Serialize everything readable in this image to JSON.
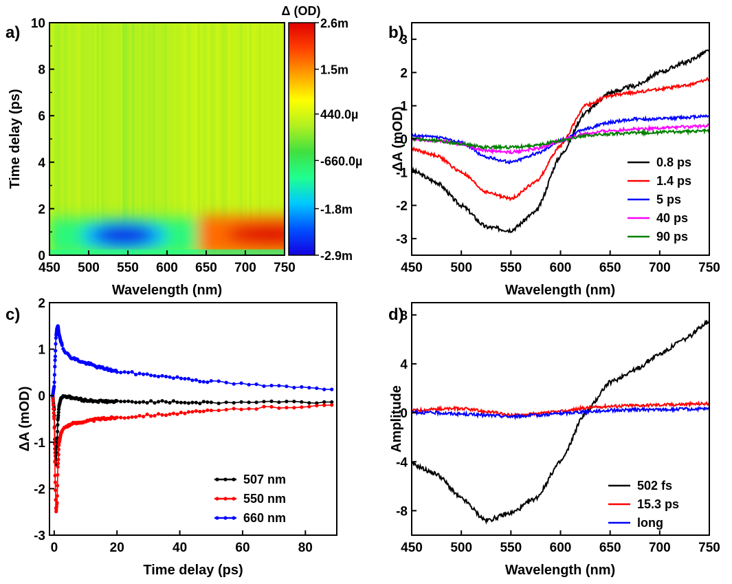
{
  "figure": {
    "panels": [
      {
        "letter": "a)"
      },
      {
        "letter": "b)"
      },
      {
        "letter": "c)"
      },
      {
        "letter": "d)"
      }
    ]
  },
  "chart_data": [
    {
      "id": "a",
      "type": "heatmap",
      "xlabel": "Wavelength (nm)",
      "ylabel": "Time delay (ps)",
      "xlim": [
        450,
        750
      ],
      "ylim": [
        0,
        10
      ],
      "xticks": [
        "450",
        "500",
        "550",
        "600",
        "650",
        "700",
        "750"
      ],
      "yticks": [
        "0",
        "2",
        "4",
        "6",
        "8",
        "10"
      ],
      "colorbar": {
        "title": "Δ (OD)",
        "range_mOD": [
          -2.9,
          2.6
        ],
        "ticks": [
          {
            "label": "2.6m",
            "value": 2.6
          },
          {
            "label": "1.5m",
            "value": 1.5
          },
          {
            "label": "440.0µ",
            "value": 0.44
          },
          {
            "label": "-660.0µ",
            "value": -0.66
          },
          {
            "label": "-1.8m",
            "value": -1.8
          },
          {
            "label": "-2.9m",
            "value": -2.9
          }
        ],
        "colormap": [
          "#1400e0",
          "#0050ff",
          "#00c8ff",
          "#20ff90",
          "#40e040",
          "#b0f020",
          "#ffff00",
          "#ffa000",
          "#ff4000",
          "#e00000"
        ]
      },
      "background_level_mOD": 0.2,
      "features": [
        {
          "kind": "bleach",
          "center_wavelength": 545,
          "center_delay": 0.85,
          "peak_mOD": -2.8
        },
        {
          "kind": "absorption",
          "from_wavelength": 640,
          "to_wavelength": 750,
          "center_delay": 0.9,
          "peak_mOD": 2.6
        }
      ]
    },
    {
      "id": "b",
      "type": "line",
      "xlabel": "Wavelength (nm)",
      "ylabel": "ΔA (mOD)",
      "xlim": [
        450,
        750
      ],
      "ylim": [
        -3.5,
        3.5
      ],
      "xticks": [
        "450",
        "500",
        "550",
        "600",
        "650",
        "700",
        "750"
      ],
      "yticks": [
        "-3",
        "-2",
        "-1",
        "0",
        "1",
        "2",
        "3"
      ],
      "legend_position": "bottom-right",
      "x": [
        450,
        475,
        500,
        525,
        550,
        575,
        600,
        625,
        650,
        675,
        700,
        725,
        750
      ],
      "series": [
        {
          "name": "0.8 ps",
          "color": "#000000",
          "values": [
            -0.95,
            -1.3,
            -2.0,
            -2.65,
            -2.75,
            -2.2,
            -0.5,
            0.8,
            1.4,
            1.6,
            2.0,
            2.3,
            2.65
          ]
        },
        {
          "name": "1.4 ps",
          "color": "#ff0000",
          "values": [
            -0.3,
            -0.5,
            -1.0,
            -1.6,
            -1.8,
            -1.3,
            -0.2,
            1.0,
            1.3,
            1.4,
            1.5,
            1.6,
            1.8
          ]
        },
        {
          "name": "5 ps",
          "color": "#0000ff",
          "values": [
            0.1,
            0.05,
            -0.1,
            -0.55,
            -0.7,
            -0.45,
            -0.05,
            0.3,
            0.5,
            0.6,
            0.6,
            0.65,
            0.7
          ]
        },
        {
          "name": "40 ps",
          "color": "#ff00ff",
          "values": [
            0.0,
            -0.05,
            -0.15,
            -0.35,
            -0.4,
            -0.3,
            -0.05,
            0.15,
            0.25,
            0.3,
            0.33,
            0.36,
            0.4
          ]
        },
        {
          "name": "90 ps",
          "color": "#008000",
          "values": [
            0.0,
            -0.05,
            -0.15,
            -0.25,
            -0.25,
            -0.2,
            -0.05,
            0.1,
            0.15,
            0.18,
            0.2,
            0.22,
            0.25
          ]
        }
      ]
    },
    {
      "id": "c",
      "type": "scatter",
      "xlabel": "Time delay (ps)",
      "ylabel": "ΔA (mOD)",
      "xlim": [
        -1.5,
        90
      ],
      "ylim": [
        -3,
        2
      ],
      "xticks": [
        "0",
        "20",
        "40",
        "60",
        "80"
      ],
      "yticks": [
        "-3",
        "-2",
        "-1",
        "0",
        "1",
        "2"
      ],
      "legend_position": "bottom-right",
      "series": [
        {
          "name": "507 nm",
          "color": "#000000",
          "points": [
            [
              -0.5,
              0
            ],
            [
              0,
              -0.3
            ],
            [
              0.3,
              -1.2
            ],
            [
              0.6,
              -1.5
            ],
            [
              0.9,
              -1.0
            ],
            [
              1.2,
              -0.5
            ],
            [
              1.6,
              -0.2
            ],
            [
              2.2,
              -0.05
            ],
            [
              3,
              0.0
            ],
            [
              4,
              -0.02
            ],
            [
              6,
              -0.05
            ],
            [
              10,
              -0.1
            ],
            [
              15,
              -0.12
            ],
            [
              20,
              -0.13
            ],
            [
              30,
              -0.13
            ],
            [
              40,
              -0.14
            ],
            [
              50,
              -0.15
            ],
            [
              60,
              -0.14
            ],
            [
              70,
              -0.13
            ],
            [
              80,
              -0.14
            ],
            [
              89,
              -0.14
            ]
          ]
        },
        {
          "name": "550 nm",
          "color": "#ff0000",
          "points": [
            [
              -0.5,
              0
            ],
            [
              0,
              -0.5
            ],
            [
              0.3,
              -1.8
            ],
            [
              0.6,
              -2.5
            ],
            [
              0.9,
              -2.3
            ],
            [
              1.2,
              -1.5
            ],
            [
              1.6,
              -1.0
            ],
            [
              2.2,
              -0.8
            ],
            [
              3,
              -0.7
            ],
            [
              4,
              -0.65
            ],
            [
              6,
              -0.6
            ],
            [
              10,
              -0.55
            ],
            [
              15,
              -0.5
            ],
            [
              20,
              -0.47
            ],
            [
              30,
              -0.42
            ],
            [
              40,
              -0.38
            ],
            [
              50,
              -0.33
            ],
            [
              60,
              -0.28
            ],
            [
              70,
              -0.25
            ],
            [
              80,
              -0.23
            ],
            [
              89,
              -0.22
            ]
          ]
        },
        {
          "name": "660 nm",
          "color": "#0000ff",
          "points": [
            [
              -0.5,
              0
            ],
            [
              0,
              0.2
            ],
            [
              0.3,
              0.8
            ],
            [
              0.6,
              1.3
            ],
            [
              0.9,
              1.45
            ],
            [
              1.2,
              1.5
            ],
            [
              1.6,
              1.3
            ],
            [
              2.2,
              1.15
            ],
            [
              3,
              1.0
            ],
            [
              4,
              0.9
            ],
            [
              6,
              0.8
            ],
            [
              10,
              0.7
            ],
            [
              15,
              0.6
            ],
            [
              20,
              0.52
            ],
            [
              30,
              0.45
            ],
            [
              40,
              0.38
            ],
            [
              50,
              0.3
            ],
            [
              60,
              0.25
            ],
            [
              70,
              0.2
            ],
            [
              80,
              0.17
            ],
            [
              89,
              0.15
            ]
          ]
        }
      ]
    },
    {
      "id": "d",
      "type": "line",
      "xlabel": "Wavelength (nm)",
      "ylabel": "Amplitude",
      "xlim": [
        450,
        750
      ],
      "ylim": [
        -10,
        9
      ],
      "xticks": [
        "450",
        "500",
        "550",
        "600",
        "650",
        "700",
        "750"
      ],
      "yticks": [
        "-8",
        "-4",
        "0",
        "4",
        "8"
      ],
      "ytick_values": [
        -8,
        -4,
        0,
        4,
        8
      ],
      "legend_position": "bottom-right",
      "x": [
        450,
        475,
        500,
        525,
        550,
        575,
        600,
        625,
        650,
        675,
        700,
        725,
        750
      ],
      "series": [
        {
          "name": "502 fs",
          "color": "#000000",
          "values": [
            -4.2,
            -5.0,
            -7.0,
            -8.8,
            -8.2,
            -7.0,
            -4.0,
            0.0,
            2.5,
            3.5,
            4.8,
            6.0,
            7.5
          ]
        },
        {
          "name": "15.3 ps",
          "color": "#ff0000",
          "values": [
            0.2,
            0.3,
            0.35,
            0.1,
            -0.2,
            -0.1,
            0.1,
            0.4,
            0.55,
            0.6,
            0.65,
            0.7,
            0.75
          ]
        },
        {
          "name": "long",
          "color": "#0000ff",
          "values": [
            0.05,
            0.0,
            -0.1,
            -0.2,
            -0.3,
            -0.2,
            -0.05,
            0.1,
            0.2,
            0.25,
            0.25,
            0.3,
            0.3
          ]
        }
      ]
    }
  ]
}
